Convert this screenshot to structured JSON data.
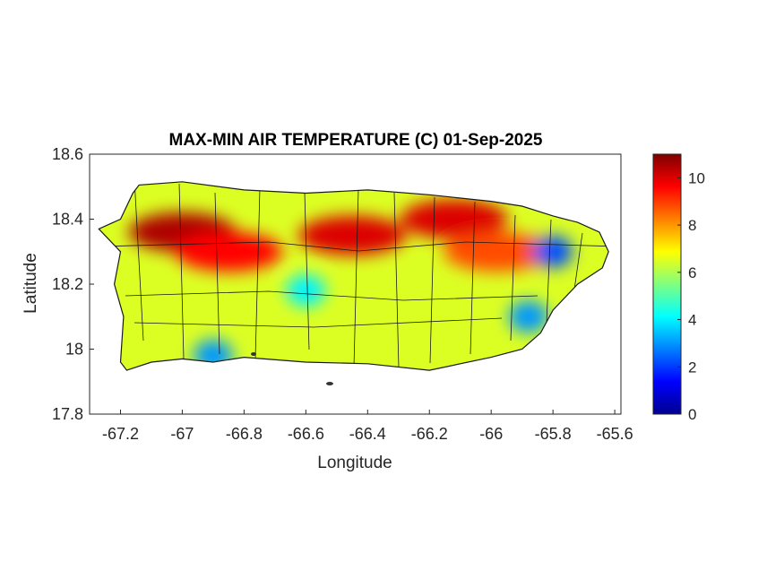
{
  "chart_data": {
    "type": "heatmap",
    "title": "MAX-MIN AIR TEMPERATURE (C) 01-Sep-2025",
    "xlabel": "Longitude",
    "ylabel": "Latitude",
    "xlim": [
      -67.3,
      -65.58
    ],
    "ylim": [
      17.8,
      18.6
    ],
    "xticks": [
      -67.2,
      -67,
      -66.8,
      -66.6,
      -66.4,
      -66.2,
      -66,
      -65.8,
      -65.6
    ],
    "xtick_labels": [
      "-67.2",
      "-67",
      "-66.8",
      "-66.6",
      "-66.4",
      "-66.2",
      "-66",
      "-65.8",
      "-65.6"
    ],
    "yticks": [
      17.8,
      18,
      18.2,
      18.4,
      18.6
    ],
    "ytick_labels": [
      "17.8",
      "18",
      "18.2",
      "18.4",
      "18.6"
    ],
    "colorbar": {
      "colormap": "jet",
      "range": [
        0,
        11
      ],
      "ticks": [
        0,
        2,
        4,
        6,
        8,
        10
      ],
      "tick_labels": [
        "0",
        "2",
        "4",
        "6",
        "8",
        "10"
      ]
    },
    "grid": false,
    "coastline_outline": [
      [
        -67.27,
        18.37
      ],
      [
        -67.2,
        18.4
      ],
      [
        -67.16,
        18.48
      ],
      [
        -67.14,
        18.505
      ],
      [
        -67.0,
        18.515
      ],
      [
        -66.8,
        18.49
      ],
      [
        -66.6,
        18.48
      ],
      [
        -66.4,
        18.49
      ],
      [
        -66.2,
        18.475
      ],
      [
        -66.0,
        18.455
      ],
      [
        -65.9,
        18.44
      ],
      [
        -65.8,
        18.41
      ],
      [
        -65.72,
        18.39
      ],
      [
        -65.65,
        18.36
      ],
      [
        -65.62,
        18.3
      ],
      [
        -65.64,
        18.25
      ],
      [
        -65.72,
        18.2
      ],
      [
        -65.8,
        18.12
      ],
      [
        -65.84,
        18.05
      ],
      [
        -65.9,
        18.0
      ],
      [
        -66.0,
        17.975
      ],
      [
        -66.2,
        17.935
      ],
      [
        -66.4,
        17.955
      ],
      [
        -66.6,
        17.96
      ],
      [
        -66.8,
        17.975
      ],
      [
        -66.9,
        17.96
      ],
      [
        -67.0,
        17.97
      ],
      [
        -67.1,
        17.96
      ],
      [
        -67.18,
        17.935
      ],
      [
        -67.2,
        17.96
      ],
      [
        -67.19,
        18.1
      ],
      [
        -67.22,
        18.2
      ],
      [
        -67.2,
        18.3
      ],
      [
        -67.24,
        18.34
      ]
    ],
    "hotspots": [
      {
        "lon": -67.0,
        "lat": 18.36,
        "value": 10.5
      },
      {
        "lon": -66.85,
        "lat": 18.3,
        "value": 9.6
      },
      {
        "lon": -66.45,
        "lat": 18.35,
        "value": 10.0
      },
      {
        "lon": -66.12,
        "lat": 18.4,
        "value": 10.0
      },
      {
        "lon": -65.98,
        "lat": 18.3,
        "value": 8.8
      }
    ],
    "coldspots": [
      {
        "lon": -65.8,
        "lat": 18.3,
        "value": 2.2
      },
      {
        "lon": -65.88,
        "lat": 18.1,
        "value": 3.0
      },
      {
        "lon": -66.6,
        "lat": 18.18,
        "value": 4.0
      },
      {
        "lon": -66.9,
        "lat": 17.98,
        "value": 3.0
      }
    ],
    "typical_value": 6.5
  }
}
